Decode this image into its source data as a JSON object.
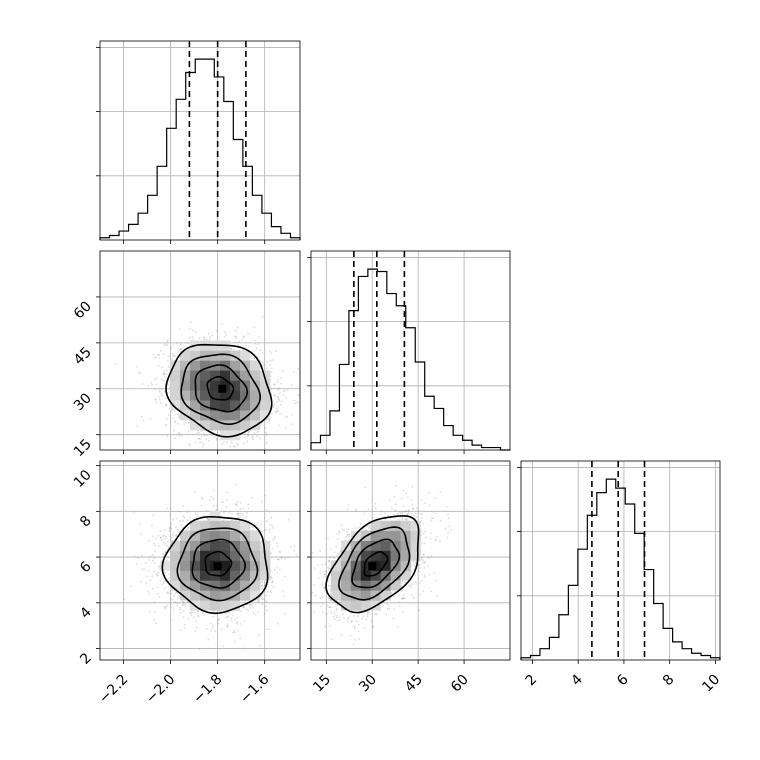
{
  "chart_data": {
    "type": "corner",
    "grid": true,
    "parameters": [
      {
        "range": [
          -2.3,
          -1.45
        ],
        "ticks": [
          -2.2,
          -2.0,
          -1.8,
          -1.6
        ],
        "tick_labels": [
          "−2.2",
          "−2.0",
          "−1.8",
          "−1.6"
        ],
        "quantiles": [
          -1.92,
          -1.8,
          -1.68
        ],
        "hist_counts": [
          1,
          2,
          4,
          7,
          12,
          20,
          33,
          50,
          63,
          75,
          81,
          81,
          73,
          62,
          45,
          33,
          20,
          12,
          6,
          3,
          1
        ]
      },
      {
        "range": [
          10,
          75
        ],
        "ticks": [
          15,
          30,
          45,
          60
        ],
        "tick_labels": [
          "15",
          "30",
          "45",
          "60"
        ],
        "quantiles": [
          24,
          31.5,
          40.5
        ],
        "hist_counts": [
          3,
          6,
          16,
          35,
          57,
          71,
          74,
          73,
          64,
          59,
          50,
          36,
          22,
          17,
          10,
          6,
          4,
          2,
          1,
          1,
          0
        ]
      },
      {
        "range": [
          1.5,
          10.2
        ],
        "ticks": [
          2,
          4,
          6,
          8,
          10
        ],
        "tick_labels": [
          "2",
          "4",
          "6",
          "8",
          "10"
        ],
        "quantiles": [
          4.6,
          5.75,
          6.9
        ],
        "hist_counts": [
          1,
          2,
          5,
          10,
          20,
          33,
          49,
          64,
          74,
          80,
          76,
          69,
          56,
          40,
          25,
          14,
          8,
          5,
          3,
          2,
          1
        ]
      }
    ],
    "pairs": [
      {
        "x_param": 0,
        "y_param": 1,
        "center": [
          -1.79,
          30
        ],
        "sigma": [
          0.11,
          7.5
        ],
        "rho": -0.15,
        "peak": [
          -1.78,
          30
        ]
      },
      {
        "x_param": 0,
        "y_param": 2,
        "center": [
          -1.8,
          5.7
        ],
        "sigma": [
          0.11,
          1.05
        ],
        "rho": 0.0,
        "peak": [
          -1.8,
          5.6
        ]
      },
      {
        "x_param": 1,
        "y_param": 2,
        "center": [
          31,
          5.7
        ],
        "sigma": [
          7.5,
          1.05
        ],
        "rho": 0.45,
        "peak": [
          30,
          5.6
        ]
      }
    ],
    "contour_sigma_levels": [
      0.5,
      1.0,
      1.5,
      2.0
    ]
  }
}
